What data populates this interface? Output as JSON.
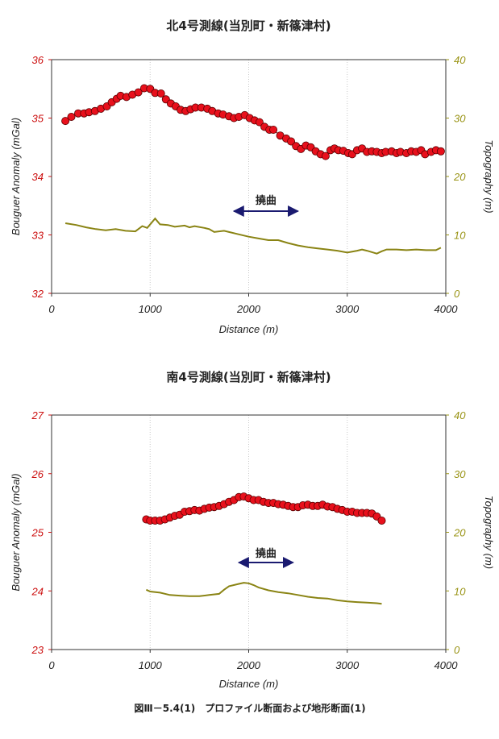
{
  "caption": "図Ⅲ－5.4(1)　プロファイル断面および地形断面(1)",
  "colors": {
    "anomaly": "#e8101c",
    "topography": "#8a8414",
    "topo_axis": "#9a9416",
    "arrow": "#1a1a70",
    "grid": "#c8c8c8"
  },
  "chart_data": [
    {
      "type": "line",
      "title": "北4号測線(当別町・新篠津村)",
      "xlabel": "Distance (m)",
      "ylabel": "Bouguer Anomaly (mGal)",
      "y2label": "Topography (m)",
      "xlim": [
        0,
        4000
      ],
      "ylim": [
        32,
        36
      ],
      "y2lim": [
        0,
        40
      ],
      "xticks": [
        "0",
        "1000",
        "2000",
        "3000",
        "4000"
      ],
      "yticks": [
        "32",
        "33",
        "34",
        "35",
        "36"
      ],
      "y2ticks": [
        "0",
        "10",
        "20",
        "30",
        "40"
      ],
      "annotation": {
        "text": "撓曲",
        "x_from": 1850,
        "x_to": 2500
      },
      "grid": true,
      "series": [
        {
          "axis": "left",
          "marker": "circle",
          "x": [
            140,
            200,
            270,
            330,
            380,
            440,
            500,
            560,
            610,
            660,
            700,
            760,
            820,
            880,
            940,
            1000,
            1050,
            1110,
            1160,
            1210,
            1260,
            1310,
            1360,
            1410,
            1460,
            1520,
            1580,
            1630,
            1690,
            1740,
            1800,
            1850,
            1900,
            1960,
            2010,
            2060,
            2110,
            2160,
            2210,
            2250,
            2320,
            2380,
            2430,
            2480,
            2530,
            2580,
            2630,
            2680,
            2730,
            2780,
            2830,
            2870,
            2910,
            2960,
            3010,
            3050,
            3100,
            3150,
            3200,
            3250,
            3300,
            3350,
            3390,
            3450,
            3500,
            3540,
            3600,
            3650,
            3700,
            3750,
            3790,
            3850,
            3900,
            3950
          ],
          "y": [
            34.95,
            35.02,
            35.08,
            35.08,
            35.1,
            35.12,
            35.16,
            35.2,
            35.27,
            35.33,
            35.38,
            35.36,
            35.4,
            35.44,
            35.51,
            35.5,
            35.43,
            35.42,
            35.32,
            35.25,
            35.2,
            35.14,
            35.12,
            35.15,
            35.18,
            35.18,
            35.16,
            35.12,
            35.08,
            35.06,
            35.03,
            35.0,
            35.02,
            35.05,
            35.0,
            34.96,
            34.93,
            34.85,
            34.8,
            34.8,
            34.7,
            34.65,
            34.6,
            34.52,
            34.47,
            34.53,
            34.5,
            34.43,
            34.38,
            34.35,
            34.45,
            34.48,
            34.45,
            34.44,
            34.4,
            34.38,
            34.45,
            34.48,
            34.42,
            34.43,
            34.42,
            34.4,
            34.42,
            34.43,
            34.4,
            34.42,
            34.4,
            34.43,
            34.42,
            34.45,
            34.38,
            34.42,
            34.45,
            34.43
          ]
        },
        {
          "axis": "right",
          "marker": "none",
          "x": [
            140,
            250,
            350,
            450,
            550,
            650,
            750,
            850,
            920,
            970,
            1050,
            1100,
            1180,
            1250,
            1350,
            1400,
            1450,
            1550,
            1600,
            1650,
            1700,
            1750,
            1800,
            1900,
            2000,
            2100,
            2200,
            2300,
            2400,
            2500,
            2600,
            2700,
            2800,
            2900,
            3000,
            3100,
            3150,
            3200,
            3300,
            3350,
            3400,
            3500,
            3600,
            3700,
            3800,
            3900,
            3950
          ],
          "y": [
            12,
            11.7,
            11.3,
            11,
            10.8,
            11,
            10.7,
            10.6,
            11.5,
            11.2,
            12.8,
            11.8,
            11.7,
            11.4,
            11.6,
            11.3,
            11.5,
            11.2,
            11,
            10.5,
            10.6,
            10.7,
            10.5,
            10.1,
            9.7,
            9.4,
            9.1,
            9.1,
            8.6,
            8.2,
            7.9,
            7.7,
            7.5,
            7.3,
            7.0,
            7.3,
            7.5,
            7.3,
            6.8,
            7.2,
            7.5,
            7.5,
            7.4,
            7.5,
            7.4,
            7.4,
            7.8
          ]
        }
      ]
    },
    {
      "type": "line",
      "title": "南4号測線(当別町・新篠津村)",
      "xlabel": "Distance (m)",
      "ylabel": "Bouguer Anomaly (mGal)",
      "y2label": "Topography (m)",
      "xlim": [
        0,
        4000
      ],
      "ylim": [
        23,
        27
      ],
      "y2lim": [
        0,
        40
      ],
      "xticks": [
        "0",
        "1000",
        "2000",
        "3000",
        "4000"
      ],
      "yticks": [
        "23",
        "24",
        "25",
        "26",
        "27"
      ],
      "y2ticks": [
        "0",
        "10",
        "20",
        "30",
        "40"
      ],
      "annotation": {
        "text": "撓曲",
        "x_from": 1900,
        "x_to": 2450
      },
      "grid": true,
      "series": [
        {
          "axis": "left",
          "marker": "circle",
          "x": [
            960,
            1000,
            1050,
            1100,
            1150,
            1200,
            1250,
            1300,
            1350,
            1400,
            1450,
            1500,
            1550,
            1600,
            1650,
            1700,
            1750,
            1800,
            1850,
            1900,
            1950,
            2000,
            2050,
            2100,
            2150,
            2200,
            2250,
            2300,
            2350,
            2400,
            2450,
            2500,
            2550,
            2600,
            2650,
            2700,
            2750,
            2800,
            2850,
            2900,
            2950,
            3000,
            3050,
            3100,
            3150,
            3200,
            3250,
            3300,
            3350
          ],
          "y": [
            25.22,
            25.2,
            25.2,
            25.2,
            25.22,
            25.25,
            25.28,
            25.3,
            25.35,
            25.36,
            25.38,
            25.37,
            25.4,
            25.42,
            25.43,
            25.45,
            25.48,
            25.52,
            25.55,
            25.6,
            25.61,
            25.58,
            25.55,
            25.55,
            25.52,
            25.5,
            25.5,
            25.48,
            25.47,
            25.45,
            25.43,
            25.43,
            25.46,
            25.47,
            25.45,
            25.45,
            25.47,
            25.44,
            25.43,
            25.4,
            25.38,
            25.35,
            25.35,
            25.33,
            25.33,
            25.33,
            25.32,
            25.27,
            25.2
          ]
        },
        {
          "axis": "right",
          "marker": "none",
          "x": [
            960,
            1000,
            1100,
            1200,
            1300,
            1400,
            1500,
            1600,
            1700,
            1750,
            1800,
            1900,
            1950,
            2000,
            2050,
            2100,
            2200,
            2300,
            2400,
            2500,
            2600,
            2700,
            2800,
            2900,
            3000,
            3100,
            3200,
            3300,
            3350
          ],
          "y": [
            10.2,
            9.9,
            9.7,
            9.3,
            9.2,
            9.1,
            9.1,
            9.3,
            9.5,
            10.2,
            10.8,
            11.2,
            11.4,
            11.3,
            11.0,
            10.6,
            10.1,
            9.8,
            9.6,
            9.3,
            9.0,
            8.8,
            8.7,
            8.4,
            8.2,
            8.1,
            8.0,
            7.9,
            7.8
          ]
        }
      ]
    }
  ]
}
